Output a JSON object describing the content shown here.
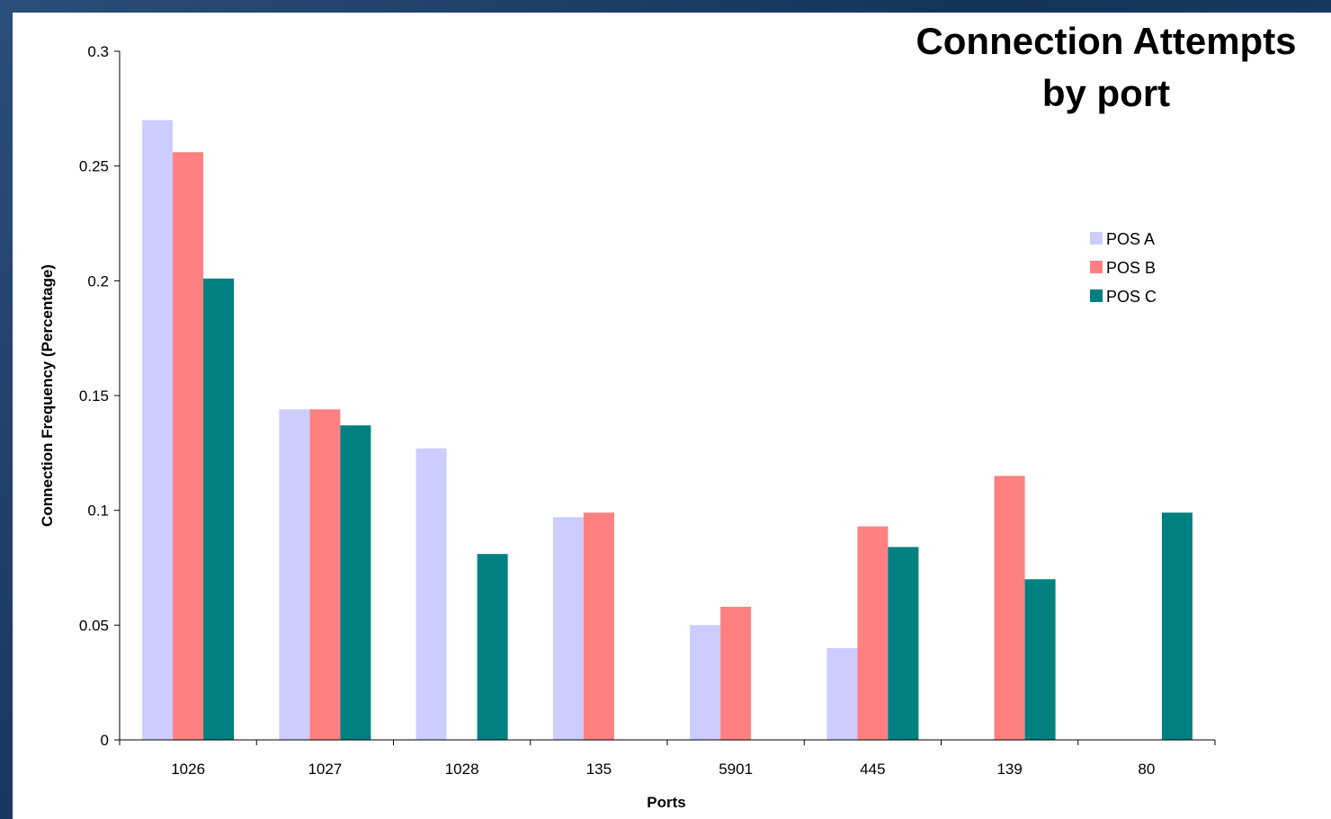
{
  "chart_data": {
    "type": "bar",
    "title": "Connection Attempts by port",
    "title_lines": [
      "Connection Attempts",
      "by port"
    ],
    "xlabel": "Ports",
    "ylabel": "Connection Frequency (Percentage)",
    "ylim": [
      0,
      0.3
    ],
    "yticks": [
      0,
      0.05,
      0.1,
      0.15,
      0.2,
      0.25,
      0.3
    ],
    "ytick_labels": [
      "0",
      "0.05",
      "0.1",
      "0.15",
      "0.2",
      "0.25",
      "0.3"
    ],
    "categories": [
      "1026",
      "1027",
      "1028",
      "135",
      "5901",
      "445",
      "139",
      "80"
    ],
    "series": [
      {
        "name": "POS A",
        "color": "#ccccff",
        "values": [
          0.27,
          0.144,
          0.127,
          0.097,
          0.05,
          0.04,
          0,
          0
        ]
      },
      {
        "name": "POS B",
        "color": "#ff8080",
        "values": [
          0.256,
          0.144,
          0,
          0.099,
          0.058,
          0.093,
          0.115,
          0
        ]
      },
      {
        "name": "POS C",
        "color": "#008080",
        "values": [
          0.201,
          0.137,
          0.081,
          0,
          0,
          0.084,
          0.07,
          0.099
        ]
      }
    ],
    "grid": false,
    "legend_position": "right"
  }
}
